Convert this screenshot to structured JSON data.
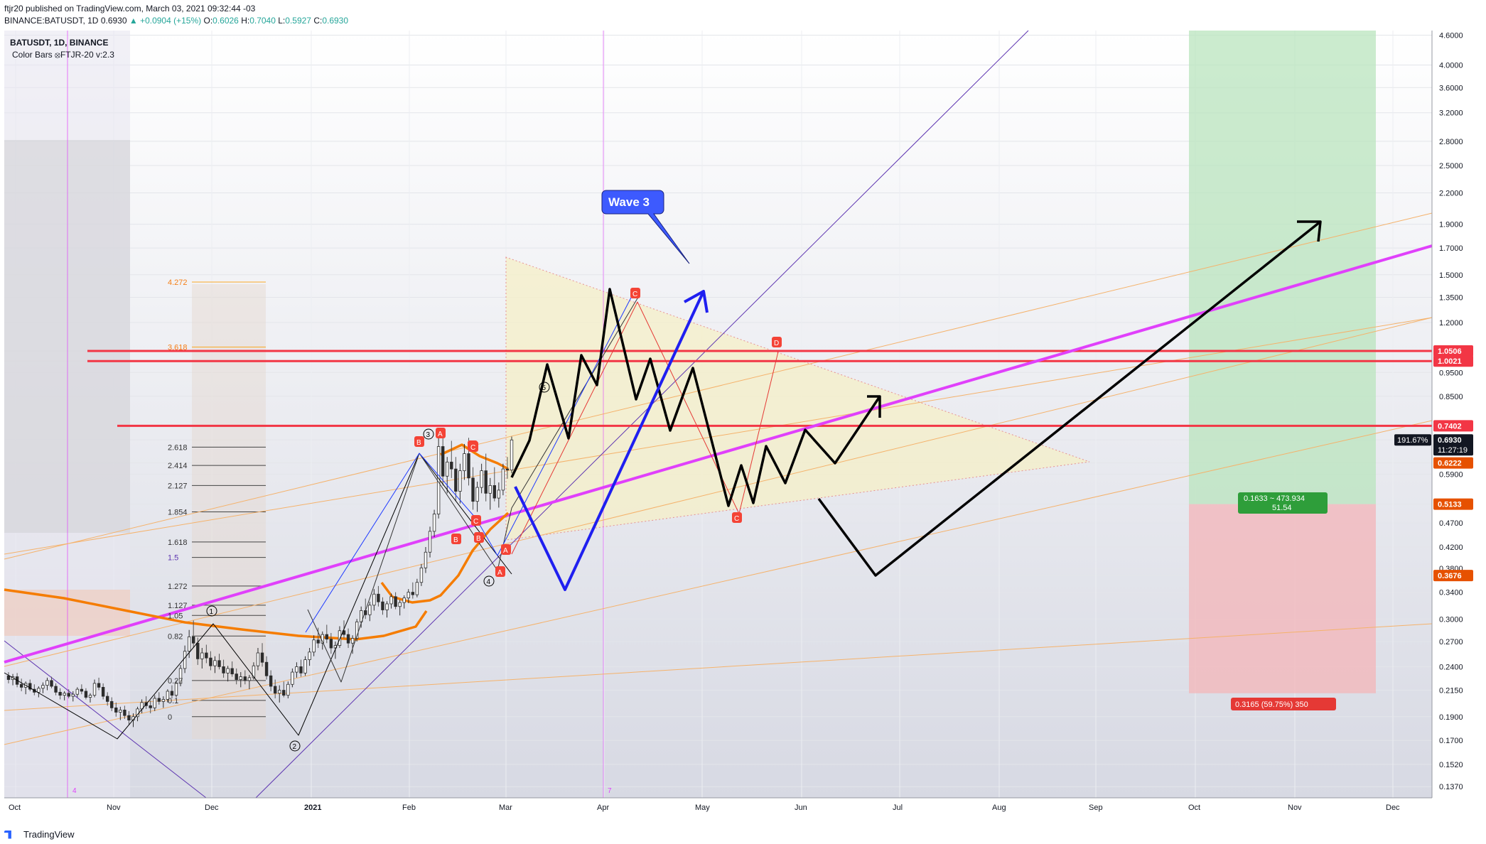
{
  "header": {
    "publisher_line": "ftjr20 published on TradingView.com, March 03, 2021 09:32:44 -03",
    "symbol_line_prefix": "BINANCE:BATUSDT, 1D",
    "last": "0.6930",
    "change": "▲ +0.0904 (+15%)",
    "o_label": "O:",
    "o": "0.6026",
    "h_label": "H:",
    "h": "0.7040",
    "l_label": "L:",
    "l": "0.5927",
    "c_label": "C:",
    "c": "0.6930"
  },
  "legend": {
    "symbol": "BATUSDT, 1D, BINANCE",
    "indicator": "Color Bars ⦻FTJR-20 v:2.3"
  },
  "footer": {
    "brand": "TradingView"
  },
  "colors": {
    "up": "#26a69a",
    "down": "#ef5350",
    "magenta": "#e040fb",
    "black": "#000000",
    "blue": "#1f1ff0",
    "orange": "#f57c00",
    "red_line": "#f23645",
    "green_zone": "#b9e4bd",
    "red_zone": "#f2b8bc",
    "triangle": "#f6f0c8"
  },
  "chart_data": {
    "type": "candlestick",
    "title": "BATUSDT, 1D, BINANCE",
    "y_scale": "log",
    "ylim": [
      0.13,
      4.7
    ],
    "y_ticks": [
      "4.6000",
      "4.0000",
      "3.6000",
      "3.2000",
      "2.8000",
      "2.5000",
      "2.2000",
      "1.9000",
      "1.7000",
      "1.5000",
      "1.3500",
      "1.2000",
      "1.0506",
      "1.0021",
      "0.9500",
      "0.8500",
      "0.7402",
      "0.6930",
      "0.6222",
      "0.5900",
      "0.5133",
      "0.4700",
      "0.4200",
      "0.3800",
      "0.3676",
      "0.3400",
      "0.3000",
      "0.2700",
      "0.2400",
      "0.2150",
      "0.1900",
      "0.1700",
      "0.1520",
      "0.1370"
    ],
    "x_ticks": [
      "Oct",
      "Nov",
      "Dec",
      "2021",
      "Feb",
      "Mar",
      "Apr",
      "May",
      "Jun",
      "Jul",
      "Aug",
      "Sep",
      "Oct",
      "Nov",
      "Dec"
    ],
    "price_badges": [
      {
        "label": "1.0506",
        "value": 1.0506,
        "color": "#f23645"
      },
      {
        "label": "1.0021",
        "value": 1.0021,
        "color": "#f23645"
      },
      {
        "label": "0.7402",
        "value": 0.7402,
        "color": "#f23645"
      },
      {
        "label": "0.6930",
        "value": 0.693,
        "color": "#131722",
        "extra": "11:27:19",
        "pct": "191.67%"
      },
      {
        "label": "0.6222",
        "value": 0.6222,
        "color": "#e65100"
      },
      {
        "label": "0.5133",
        "value": 0.5133,
        "color": "#e65100"
      },
      {
        "label": "0.3676",
        "value": 0.3676,
        "color": "#e65100"
      }
    ],
    "horizontal_lines": [
      1.0506,
      1.0021,
      0.7402
    ],
    "fib_levels_left": [
      {
        "label": "4.272",
        "value": 1.45
      },
      {
        "label": "3.618",
        "value": 1.07
      },
      {
        "label": "2.618",
        "value": 0.67
      },
      {
        "label": "2.414",
        "value": 0.615
      },
      {
        "label": "2.127",
        "value": 0.56
      },
      {
        "label": "1.854",
        "value": 0.495
      },
      {
        "label": "1.618",
        "value": 0.43
      },
      {
        "label": "1.5",
        "value": 0.4
      },
      {
        "label": "1.272",
        "value": 0.35
      },
      {
        "label": "1.127",
        "value": 0.32
      },
      {
        "label": "1.05",
        "value": 0.305
      },
      {
        "label": "0.82",
        "value": 0.277
      },
      {
        "label": "0.27",
        "value": 0.225
      },
      {
        "label": "0.1",
        "value": 0.205
      },
      {
        "label": "0",
        "value": 0.19
      }
    ],
    "callout": "Wave 3",
    "wave_labels": [
      "1",
      "2",
      "3",
      "4",
      "5"
    ],
    "pattern_labels": [
      "A",
      "B",
      "C",
      "D",
      "C",
      "B",
      "A",
      "C",
      "B",
      "A",
      "B",
      "C"
    ],
    "position_tool": {
      "target_label": "0.1633 ~ 473.934",
      "target_sub": "51.54",
      "stop_label": "0.3165 (59.75%) 350",
      "entry": 0.5133,
      "target": 4.7,
      "stop": 0.212
    },
    "candles": [
      [
        0.23,
        0.234,
        0.222,
        0.226
      ],
      [
        0.226,
        0.232,
        0.22,
        0.229
      ],
      [
        0.229,
        0.233,
        0.218,
        0.221
      ],
      [
        0.221,
        0.227,
        0.214,
        0.218
      ],
      [
        0.218,
        0.224,
        0.211,
        0.222
      ],
      [
        0.222,
        0.226,
        0.214,
        0.216
      ],
      [
        0.216,
        0.221,
        0.21,
        0.213
      ],
      [
        0.213,
        0.219,
        0.208,
        0.217
      ],
      [
        0.217,
        0.223,
        0.212,
        0.22
      ],
      [
        0.22,
        0.228,
        0.215,
        0.225
      ],
      [
        0.225,
        0.229,
        0.217,
        0.219
      ],
      [
        0.219,
        0.222,
        0.21,
        0.213
      ],
      [
        0.213,
        0.217,
        0.206,
        0.21
      ],
      [
        0.21,
        0.214,
        0.205,
        0.212
      ],
      [
        0.212,
        0.216,
        0.207,
        0.209
      ],
      [
        0.209,
        0.214,
        0.204,
        0.211
      ],
      [
        0.211,
        0.218,
        0.208,
        0.216
      ],
      [
        0.216,
        0.221,
        0.211,
        0.214
      ],
      [
        0.214,
        0.217,
        0.206,
        0.208
      ],
      [
        0.208,
        0.212,
        0.203,
        0.21
      ],
      [
        0.21,
        0.226,
        0.208,
        0.222
      ],
      [
        0.222,
        0.228,
        0.215,
        0.218
      ],
      [
        0.218,
        0.222,
        0.206,
        0.209
      ],
      [
        0.209,
        0.213,
        0.2,
        0.204
      ],
      [
        0.204,
        0.208,
        0.195,
        0.198
      ],
      [
        0.198,
        0.203,
        0.19,
        0.194
      ],
      [
        0.194,
        0.199,
        0.187,
        0.196
      ],
      [
        0.196,
        0.2,
        0.188,
        0.191
      ],
      [
        0.191,
        0.195,
        0.183,
        0.187
      ],
      [
        0.187,
        0.193,
        0.181,
        0.19
      ],
      [
        0.19,
        0.199,
        0.186,
        0.197
      ],
      [
        0.197,
        0.206,
        0.193,
        0.203
      ],
      [
        0.203,
        0.209,
        0.197,
        0.2
      ],
      [
        0.2,
        0.205,
        0.193,
        0.198
      ],
      [
        0.198,
        0.21,
        0.195,
        0.207
      ],
      [
        0.207,
        0.213,
        0.201,
        0.204
      ],
      [
        0.204,
        0.209,
        0.198,
        0.206
      ],
      [
        0.206,
        0.216,
        0.203,
        0.214
      ],
      [
        0.214,
        0.22,
        0.207,
        0.21
      ],
      [
        0.21,
        0.225,
        0.208,
        0.222
      ],
      [
        0.222,
        0.242,
        0.219,
        0.238
      ],
      [
        0.238,
        0.265,
        0.233,
        0.258
      ],
      [
        0.258,
        0.285,
        0.25,
        0.276
      ],
      [
        0.276,
        0.298,
        0.262,
        0.268
      ],
      [
        0.268,
        0.275,
        0.242,
        0.249
      ],
      [
        0.249,
        0.262,
        0.238,
        0.256
      ],
      [
        0.256,
        0.266,
        0.244,
        0.25
      ],
      [
        0.25,
        0.258,
        0.236,
        0.241
      ],
      [
        0.241,
        0.252,
        0.233,
        0.247
      ],
      [
        0.247,
        0.255,
        0.237,
        0.24
      ],
      [
        0.24,
        0.248,
        0.228,
        0.233
      ],
      [
        0.233,
        0.241,
        0.224,
        0.238
      ],
      [
        0.238,
        0.246,
        0.229,
        0.232
      ],
      [
        0.232,
        0.238,
        0.221,
        0.226
      ],
      [
        0.226,
        0.234,
        0.218,
        0.229
      ],
      [
        0.229,
        0.236,
        0.221,
        0.225
      ],
      [
        0.225,
        0.231,
        0.216,
        0.228
      ],
      [
        0.228,
        0.245,
        0.226,
        0.241
      ],
      [
        0.241,
        0.262,
        0.236,
        0.256
      ],
      [
        0.256,
        0.268,
        0.24,
        0.245
      ],
      [
        0.245,
        0.252,
        0.226,
        0.23
      ],
      [
        0.23,
        0.236,
        0.214,
        0.219
      ],
      [
        0.219,
        0.226,
        0.207,
        0.212
      ],
      [
        0.212,
        0.22,
        0.203,
        0.215
      ],
      [
        0.215,
        0.224,
        0.208,
        0.21
      ],
      [
        0.21,
        0.224,
        0.207,
        0.221
      ],
      [
        0.221,
        0.238,
        0.218,
        0.234
      ],
      [
        0.234,
        0.245,
        0.228,
        0.24
      ],
      [
        0.24,
        0.248,
        0.229,
        0.233
      ],
      [
        0.233,
        0.252,
        0.23,
        0.248
      ],
      [
        0.248,
        0.262,
        0.241,
        0.257
      ],
      [
        0.257,
        0.278,
        0.252,
        0.272
      ],
      [
        0.272,
        0.288,
        0.262,
        0.268
      ],
      [
        0.268,
        0.283,
        0.26,
        0.279
      ],
      [
        0.279,
        0.292,
        0.268,
        0.273
      ],
      [
        0.273,
        0.281,
        0.255,
        0.262
      ],
      [
        0.262,
        0.27,
        0.249,
        0.265
      ],
      [
        0.265,
        0.29,
        0.262,
        0.284
      ],
      [
        0.284,
        0.298,
        0.274,
        0.279
      ],
      [
        0.279,
        0.287,
        0.262,
        0.268
      ],
      [
        0.268,
        0.278,
        0.255,
        0.274
      ],
      [
        0.274,
        0.3,
        0.27,
        0.296
      ],
      [
        0.296,
        0.318,
        0.288,
        0.312
      ],
      [
        0.312,
        0.33,
        0.3,
        0.306
      ],
      [
        0.306,
        0.325,
        0.297,
        0.32
      ],
      [
        0.32,
        0.345,
        0.312,
        0.337
      ],
      [
        0.337,
        0.35,
        0.318,
        0.325
      ],
      [
        0.325,
        0.332,
        0.306,
        0.313
      ],
      [
        0.313,
        0.326,
        0.302,
        0.322
      ],
      [
        0.322,
        0.338,
        0.315,
        0.333
      ],
      [
        0.333,
        0.34,
        0.314,
        0.318
      ],
      [
        0.318,
        0.328,
        0.305,
        0.324
      ],
      [
        0.324,
        0.335,
        0.315,
        0.331
      ],
      [
        0.331,
        0.345,
        0.323,
        0.34
      ],
      [
        0.34,
        0.356,
        0.33,
        0.336
      ],
      [
        0.336,
        0.362,
        0.332,
        0.356
      ],
      [
        0.356,
        0.388,
        0.35,
        0.381
      ],
      [
        0.381,
        0.42,
        0.372,
        0.41
      ],
      [
        0.41,
        0.462,
        0.4,
        0.452
      ],
      [
        0.452,
        0.5,
        0.44,
        0.49
      ],
      [
        0.49,
        0.7,
        0.48,
        0.672
      ],
      [
        0.672,
        0.712,
        0.56,
        0.585
      ],
      [
        0.585,
        0.64,
        0.54,
        0.625
      ],
      [
        0.625,
        0.69,
        0.58,
        0.605
      ],
      [
        0.605,
        0.64,
        0.52,
        0.545
      ],
      [
        0.545,
        0.62,
        0.515,
        0.6
      ],
      [
        0.6,
        0.68,
        0.575,
        0.65
      ],
      [
        0.65,
        0.7,
        0.56,
        0.58
      ],
      [
        0.58,
        0.61,
        0.5,
        0.52
      ],
      [
        0.52,
        0.57,
        0.495,
        0.555
      ],
      [
        0.555,
        0.62,
        0.54,
        0.6
      ],
      [
        0.6,
        0.65,
        0.52,
        0.54
      ],
      [
        0.54,
        0.58,
        0.5,
        0.56
      ],
      [
        0.56,
        0.61,
        0.52,
        0.528
      ],
      [
        0.528,
        0.568,
        0.505,
        0.548
      ],
      [
        0.548,
        0.62,
        0.535,
        0.605
      ],
      [
        0.605,
        0.64,
        0.578,
        0.602
      ],
      [
        0.602,
        0.704,
        0.593,
        0.693
      ]
    ],
    "annotations": [
      {
        "text": "4",
        "x_label": "Oct"
      },
      {
        "text": "7",
        "x_label": "Apr"
      }
    ]
  }
}
